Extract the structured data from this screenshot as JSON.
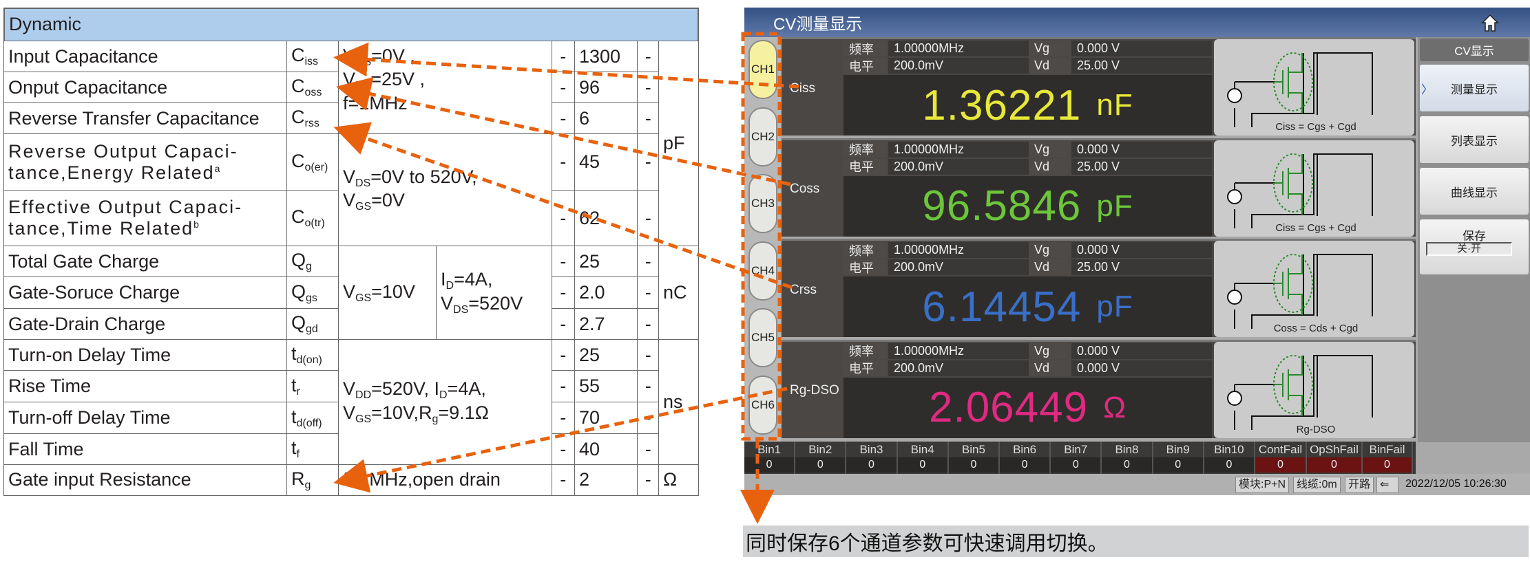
{
  "table": {
    "header": "Dynamic",
    "rows": [
      {
        "name": "Input Capacitance",
        "symbol": "C_{iss}",
        "min": "-",
        "typ": "1300",
        "max": "-"
      },
      {
        "name": "Onput Capacitance",
        "symbol": "C_{oss}",
        "min": "-",
        "typ": "96",
        "max": "-"
      },
      {
        "name": "Reverse Transfer Capacitance",
        "symbol": "C_{rss}",
        "min": "-",
        "typ": "6",
        "max": "-"
      },
      {
        "name": "Reverse Output Capaci-|tance,Energy Related^{a}",
        "symbol": "C_{o(er)}",
        "min": "-",
        "typ": "45",
        "max": "-"
      },
      {
        "name": "Effective Output Capaci-|tance,Time Related^{b}",
        "symbol": "C_{o(tr)}",
        "min": "-",
        "typ": "62",
        "max": "-"
      },
      {
        "name": "Total Gate Charge",
        "symbol": "Q_{g}",
        "min": "-",
        "typ": "25",
        "max": "-"
      },
      {
        "name": "Gate-Soruce Charge",
        "symbol": "Q_{gs}",
        "min": "-",
        "typ": "2.0",
        "max": "-"
      },
      {
        "name": "Gate-Drain Charge",
        "symbol": "Q_{gd}",
        "min": "-",
        "typ": "2.7",
        "max": "-"
      },
      {
        "name": "Turn-on Delay Time",
        "symbol": "t_{d(on)}",
        "min": "-",
        "typ": "25",
        "max": "-"
      },
      {
        "name": "Rise Time",
        "symbol": "t_{r}",
        "min": "-",
        "typ": "55",
        "max": "-"
      },
      {
        "name": "Turn-off Delay Time",
        "symbol": "t_{d(off)}",
        "min": "-",
        "typ": "70",
        "max": "-"
      },
      {
        "name": "Fall Time",
        "symbol": "t_{f}",
        "min": "-",
        "typ": "40",
        "max": "-"
      },
      {
        "name": "Gate input Resistance",
        "symbol": "R_{g}",
        "min": "-",
        "typ": "2",
        "max": "-"
      }
    ],
    "conditions": [
      "V_{GS}=0V ,|V_{DS}=25V ,|f=1MHz",
      "V_{DS}=0V to 520V,|V_{GS}=0V",
      "V_{GS}=10V",
      "I_{D}=4A,|V_{DS}=520V",
      "V_{DD}=520V, I_{D}=4A,|V_{GS}=10V,R_{g}=9.1Ω",
      "f=1MHz,open drain"
    ],
    "units": [
      "pF",
      "nC",
      "ns",
      "Ω"
    ]
  },
  "screen": {
    "title": "CV测量显示",
    "channels": [
      "CH1",
      "CH2",
      "CH3",
      "CH4",
      "CH5",
      "CH6"
    ],
    "active_channel": "CH1",
    "measurements": [
      {
        "label": "Ciss",
        "freq_label": "频率",
        "freq": "1.00000MHz",
        "level_label": "电平",
        "level": "200.0mV",
        "vg_label": "Vg",
        "vg": "0.000 V",
        "vd_label": "Vd",
        "vd": "25.00 V",
        "value": "1.36221",
        "unit": "nF",
        "color": "#e8e83a",
        "formula": "Ciss = Cgs + Cgd"
      },
      {
        "label": "Coss",
        "freq_label": "频率",
        "freq": "1.00000MHz",
        "level_label": "电平",
        "level": "200.0mV",
        "vg_label": "Vg",
        "vg": "0.000 V",
        "vd_label": "Vd",
        "vd": "25.00 V",
        "value": "96.5846",
        "unit": "pF",
        "color": "#6cc63a",
        "formula": "Ciss = Cgs + Cgd"
      },
      {
        "label": "Crss",
        "freq_label": "频率",
        "freq": "1.00000MHz",
        "level_label": "电平",
        "level": "200.0mV",
        "vg_label": "Vg",
        "vg": "0.000 V",
        "vd_label": "Vd",
        "vd": "25.00 V",
        "value": "6.14454",
        "unit": "pF",
        "color": "#3a6fc8",
        "formula": "Coss = Cds + Cgd"
      },
      {
        "label": "Rg-DSO",
        "freq_label": "频率",
        "freq": "1.00000MHz",
        "level_label": "电平",
        "level": "200.0mV",
        "vg_label": "Vg",
        "vg": "0.000 V",
        "vd_label": "Vd",
        "vd": "0.000 V",
        "value": "2.06449",
        "unit": "Ω",
        "color": "#e02a82",
        "formula": "Rg-DSO"
      }
    ],
    "sidebar": {
      "header": "CV显示",
      "buttons": [
        "测量显示",
        "列表显示",
        "曲线显示"
      ],
      "active": "测量显示",
      "save_label": "保存",
      "save_toggle": "关·开"
    },
    "bins": [
      {
        "name": "Bin1",
        "value": "0"
      },
      {
        "name": "Bin2",
        "value": "0"
      },
      {
        "name": "Bin3",
        "value": "0"
      },
      {
        "name": "Bin4",
        "value": "0"
      },
      {
        "name": "Bin5",
        "value": "0"
      },
      {
        "name": "Bin6",
        "value": "0"
      },
      {
        "name": "Bin7",
        "value": "0"
      },
      {
        "name": "Bin8",
        "value": "0"
      },
      {
        "name": "Bin9",
        "value": "0"
      },
      {
        "name": "Bin10",
        "value": "0"
      },
      {
        "name": "ContFail",
        "value": "0",
        "fail": true
      },
      {
        "name": "OpShFail",
        "value": "0",
        "fail": true
      },
      {
        "name": "BinFail",
        "value": "0",
        "fail": true
      }
    ],
    "status": {
      "module": "模块:P+N",
      "cable": "线缆:0m",
      "open": "开路",
      "usb_icon": "usb-icon",
      "datetime": "2022/12/05 10:26:30"
    }
  },
  "caption": "同时保存6个通道参数可快速调用切换。",
  "colors": {
    "annotation": "#e8620e",
    "header_bg": "#aecdec",
    "fail_bg": "#6b1212"
  }
}
